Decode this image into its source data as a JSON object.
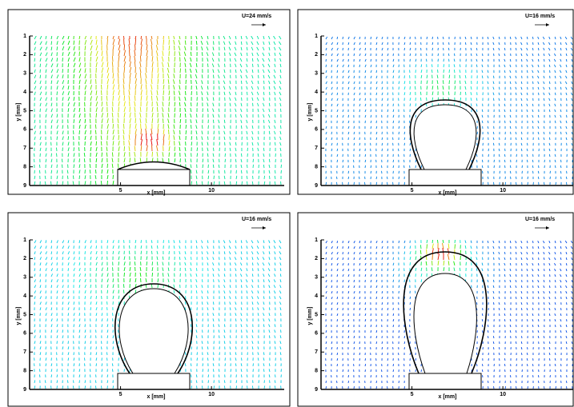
{
  "chart_data": [
    {
      "type": "quiver",
      "annotation": "U=24 mm/s",
      "xlabel": "x [mm]",
      "ylabel": "y [mm]",
      "xlim": [
        0,
        14
      ],
      "ylim": [
        9,
        1
      ],
      "xticks": [
        5,
        10
      ],
      "yticks": [
        1,
        2,
        3,
        4,
        5,
        6,
        7,
        8,
        9
      ]
    },
    {
      "type": "quiver",
      "annotation": "U=16 mm/s",
      "xlabel": "x [mm]",
      "ylabel": "y [mm]",
      "xlim": [
        0,
        14
      ],
      "ylim": [
        9,
        1
      ],
      "xticks": [
        5,
        10
      ],
      "yticks": [
        1,
        2,
        3,
        4,
        5,
        6,
        7,
        8,
        9
      ]
    },
    {
      "type": "quiver",
      "annotation": "U=16 mm/s",
      "xlabel": "x [mm]",
      "ylabel": "y [mm]",
      "xlim": [
        0,
        14
      ],
      "ylim": [
        9,
        1
      ],
      "xticks": [
        5,
        10
      ],
      "yticks": [
        1,
        2,
        3,
        4,
        5,
        6,
        7,
        8,
        9
      ]
    },
    {
      "type": "quiver",
      "annotation": "U=16 mm/s",
      "xlabel": "x [mm]",
      "ylabel": "y [mm]",
      "xlim": [
        0,
        14
      ],
      "ylim": [
        9,
        1
      ],
      "xticks": [
        5,
        10
      ],
      "yticks": [
        1,
        2,
        3,
        4,
        5,
        6,
        7,
        8,
        9
      ]
    }
  ]
}
